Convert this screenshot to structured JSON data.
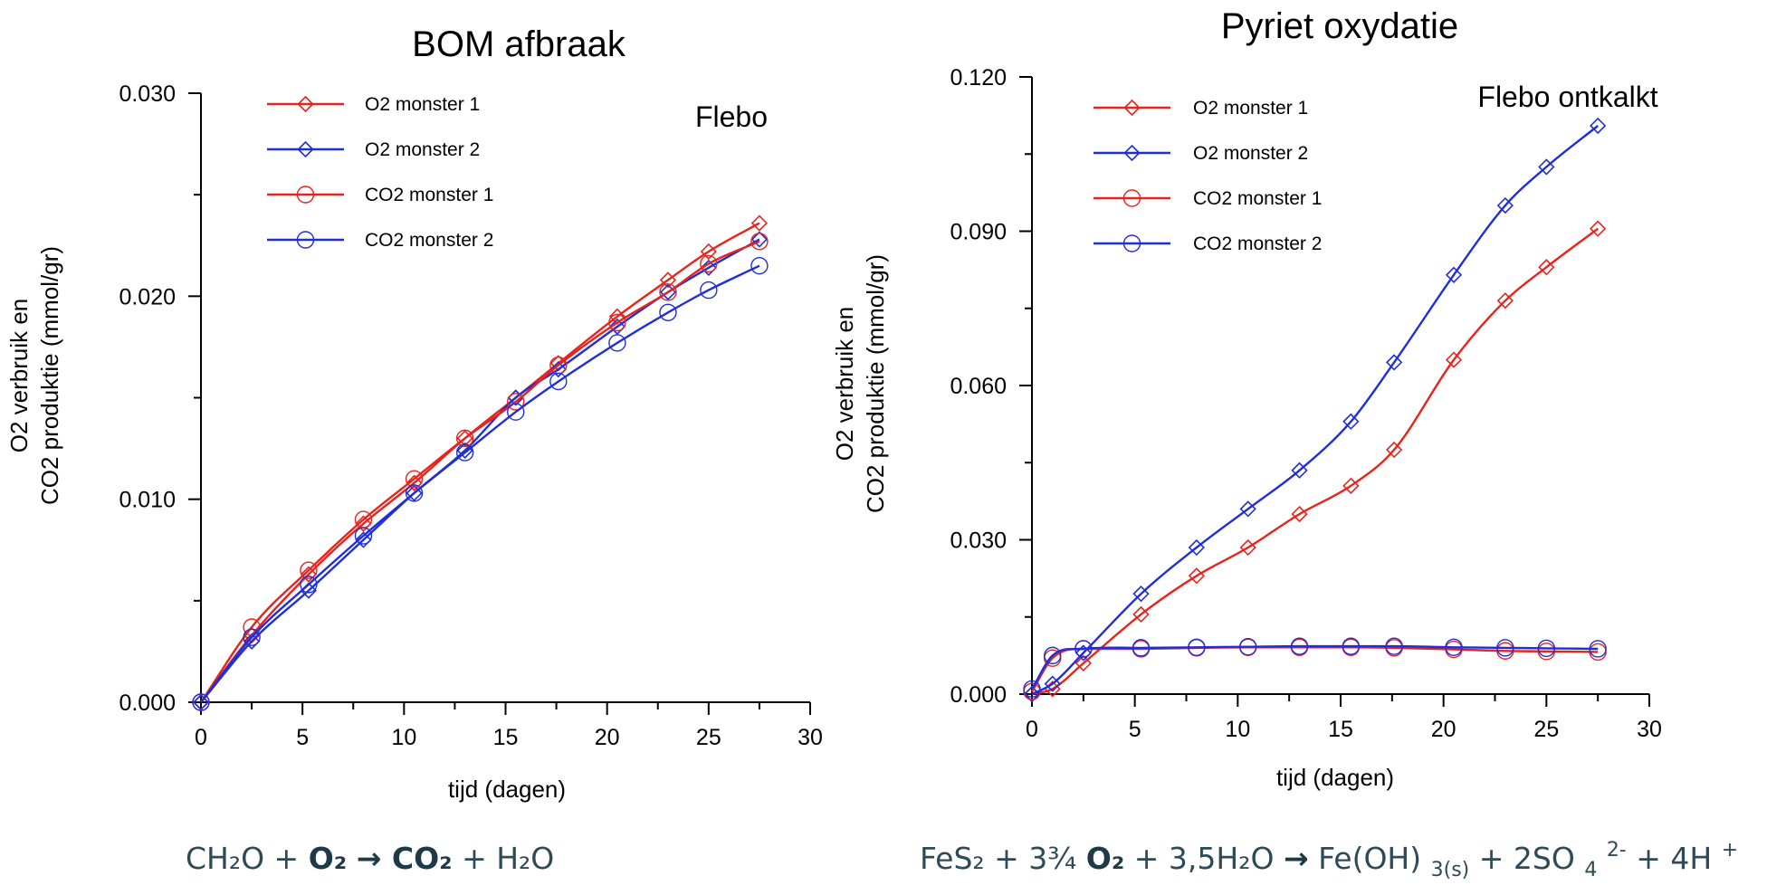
{
  "chart_data": [
    {
      "type": "line",
      "title": "BOM afbraak",
      "annotation": "Flebo",
      "xlabel": "tijd (dagen)",
      "ylabel": [
        "O2 verbruik en",
        "CO2 produktie (mmol/gr)"
      ],
      "xlim": [
        0,
        30
      ],
      "ylim": [
        0,
        0.03
      ],
      "xticks": [
        "0",
        "5",
        "10",
        "15",
        "20",
        "25",
        "30"
      ],
      "yticks": [
        "0.000",
        "0.010",
        "0.020",
        "0.030"
      ],
      "grid": false,
      "legend_position": "top-center",
      "series": [
        {
          "name": "O2 monster 1",
          "color": "#e8231c",
          "marker": "diamond",
          "x": [
            0,
            2.5,
            5.3,
            8,
            10.5,
            13,
            15.5,
            17.6,
            20.5,
            23,
            25,
            27.5
          ],
          "y": [
            0,
            0.0033,
            0.0063,
            0.0088,
            0.0108,
            0.013,
            0.015,
            0.0167,
            0.019,
            0.0208,
            0.0222,
            0.0236
          ]
        },
        {
          "name": "O2 monster 2",
          "color": "#1f2ed9",
          "marker": "diamond",
          "x": [
            0,
            2.5,
            5.3,
            8,
            10.5,
            13,
            15.5,
            17.6,
            20.5,
            23,
            25,
            27.5
          ],
          "y": [
            0,
            0.003,
            0.0055,
            0.008,
            0.0103,
            0.0124,
            0.015,
            0.0164,
            0.0185,
            0.0202,
            0.0214,
            0.0228
          ]
        },
        {
          "name": "CO2 monster 1",
          "color": "#e8231c",
          "marker": "circle",
          "x": [
            0,
            2.5,
            5.3,
            8,
            10.5,
            13,
            15.5,
            17.6,
            20.5,
            23,
            25,
            27.5
          ],
          "y": [
            0,
            0.0037,
            0.0065,
            0.009,
            0.011,
            0.013,
            0.0148,
            0.0166,
            0.0187,
            0.0202,
            0.0216,
            0.0227
          ]
        },
        {
          "name": " CO2 monster 2",
          "color": "#1f2ed9",
          "marker": "circle",
          "x": [
            0,
            2.5,
            5.3,
            8,
            10.5,
            13,
            15.5,
            17.6,
            20.5,
            23,
            25,
            27.5
          ],
          "y": [
            0,
            0.0032,
            0.0058,
            0.0082,
            0.0103,
            0.0123,
            0.0143,
            0.0158,
            0.0177,
            0.0192,
            0.0203,
            0.0215
          ]
        }
      ],
      "equation": [
        "CH₂O + ",
        "O₂",
        "→ ",
        "CO₂",
        " + H₂O"
      ]
    },
    {
      "type": "line",
      "title": "Pyriet oxydatie",
      "annotation": "Flebo ontkalkt",
      "xlabel": "tijd (dagen)",
      "ylabel": [
        "O2 verbruik en",
        "CO2 produktie (mmol/gr)"
      ],
      "xlim": [
        0,
        30
      ],
      "ylim": [
        0,
        0.12
      ],
      "xticks": [
        "0",
        "5",
        "10",
        "15",
        "20",
        "25",
        "30"
      ],
      "yticks": [
        "0.000",
        "0.030",
        "0.060",
        "0.090",
        "0.120"
      ],
      "grid": false,
      "legend_position": "top-left",
      "series": [
        {
          "name": "O2 monster 1",
          "color": "#e8231c",
          "marker": "diamond",
          "x": [
            0,
            1,
            2.5,
            5.3,
            8,
            10.5,
            13,
            15.5,
            17.6,
            20.5,
            23,
            25,
            27.5
          ],
          "y": [
            0,
            0.001,
            0.006,
            0.0155,
            0.023,
            0.0285,
            0.035,
            0.0405,
            0.0475,
            0.065,
            0.0765,
            0.083,
            0.0905
          ]
        },
        {
          "name": "O2 monster 2",
          "color": "#1f2ed9",
          "marker": "diamond",
          "x": [
            0,
            1,
            2.5,
            5.3,
            8,
            10.5,
            13,
            15.5,
            17.6,
            20.5,
            23,
            25,
            27.5
          ],
          "y": [
            0,
            0.002,
            0.008,
            0.0195,
            0.0285,
            0.036,
            0.0435,
            0.053,
            0.0645,
            0.0815,
            0.095,
            0.1025,
            0.1105
          ]
        },
        {
          "name": "CO2 monster 1",
          "color": "#e8231c",
          "marker": "circle",
          "x": [
            0,
            1,
            2.5,
            5.3,
            8,
            10.5,
            13,
            15.5,
            17.6,
            20.5,
            23,
            25,
            27.5
          ],
          "y": [
            0.0005,
            0.007,
            0.0088,
            0.0088,
            0.009,
            0.0091,
            0.0091,
            0.0091,
            0.009,
            0.0087,
            0.0084,
            0.0083,
            0.0082
          ]
        },
        {
          "name": " CO2 monster 2",
          "color": "#1f2ed9",
          "marker": "circle",
          "x": [
            0,
            1,
            2.5,
            5.3,
            8,
            10.5,
            13,
            15.5,
            17.6,
            20.5,
            23,
            25,
            27.5
          ],
          "y": [
            0.001,
            0.0075,
            0.0088,
            0.009,
            0.0091,
            0.0092,
            0.0093,
            0.0093,
            0.0093,
            0.0091,
            0.009,
            0.0089,
            0.0088
          ]
        }
      ],
      "equation": [
        "FeS₂ + 3¾",
        "O₂",
        " + 3,5H₂O ",
        "→",
        " Fe(OH)",
        "3(s)",
        " + 2SO",
        "4",
        "2-",
        " + 4H",
        "+"
      ]
    }
  ]
}
